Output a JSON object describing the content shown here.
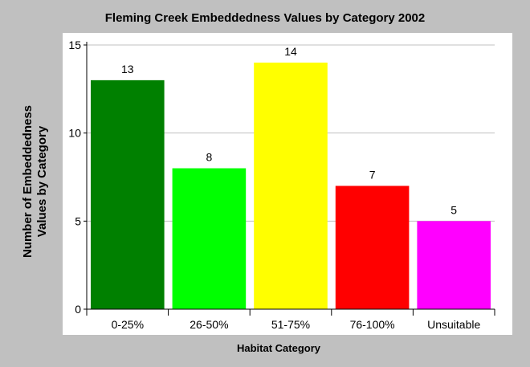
{
  "chart_data": {
    "type": "bar",
    "title": "Fleming Creek Embeddedness Values by Category 2002",
    "xlabel": "Habitat Category",
    "ylabel_lines": [
      "Number of Embeddedness",
      "Values by Category"
    ],
    "categories": [
      "0-25%",
      "26-50%",
      "51-75%",
      "76-100%",
      "Unsuitable"
    ],
    "values": [
      13,
      8,
      14,
      7,
      5
    ],
    "data_labels": [
      "13",
      "8",
      "14",
      "7",
      "5"
    ],
    "colors": [
      "#008000",
      "#00ff00",
      "#ffff00",
      "#ff0000",
      "#ff00ff"
    ],
    "ylim": [
      0,
      15
    ],
    "yticks": [
      0,
      5,
      10,
      15
    ],
    "ytick_labels": [
      "0",
      "5",
      "10",
      "15"
    ],
    "grid": true,
    "plot_background": "#ffffff",
    "gridline_color": "#c0c0c0"
  }
}
